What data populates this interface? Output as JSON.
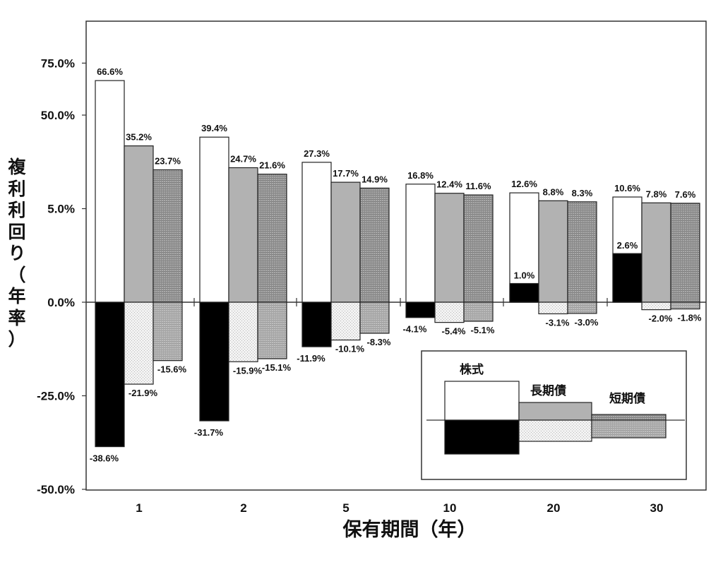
{
  "chart_data": {
    "type": "bar",
    "ylabel": "複利利回り（年率）",
    "xlabel": "保有期間（年）",
    "y_ticks": [
      "75.0%",
      "50.0%",
      "5.0%",
      "0.0%",
      "-25.0%",
      "-50.0%"
    ],
    "categories": [
      "1",
      "2",
      "5",
      "10",
      "20",
      "30"
    ],
    "legend_placement": "bottom-right",
    "series": [
      {
        "name": "株式",
        "kind": "max",
        "values": [
          66.6,
          39.4,
          27.3,
          16.8,
          12.6,
          10.6
        ],
        "labels": [
          "66.6%",
          "39.4%",
          "27.3%",
          "16.8%",
          "12.6%",
          "10.6%"
        ]
      },
      {
        "name": "株式",
        "kind": "min",
        "values": [
          -38.6,
          -31.7,
          -11.9,
          -4.1,
          1.0,
          2.6
        ],
        "labels": [
          "-38.6%",
          "-31.7%",
          "-11.9%",
          "-4.1%",
          "1.0%",
          "2.6%"
        ]
      },
      {
        "name": "長期債",
        "kind": "max",
        "values": [
          35.2,
          24.7,
          17.7,
          12.4,
          8.8,
          7.8
        ],
        "labels": [
          "35.2%",
          "24.7%",
          "17.7%",
          "12.4%",
          "8.8%",
          "7.8%"
        ]
      },
      {
        "name": "長期債",
        "kind": "min",
        "values": [
          -21.9,
          -15.9,
          -10.1,
          -5.4,
          -3.1,
          -2.0
        ],
        "labels": [
          "-21.9%",
          "-15.9%",
          "-10.1%",
          "-5.4%",
          "-3.1%",
          "-2.0%"
        ]
      },
      {
        "name": "短期債",
        "kind": "max",
        "values": [
          23.7,
          21.6,
          14.9,
          11.6,
          8.3,
          7.6
        ],
        "labels": [
          "23.7%",
          "21.6%",
          "14.9%",
          "11.6%",
          "8.3%",
          "7.6%"
        ]
      },
      {
        "name": "短期債",
        "kind": "min",
        "values": [
          -15.6,
          -15.1,
          -8.3,
          -5.1,
          -3.0,
          -1.8
        ],
        "labels": [
          "-15.6%",
          "-15.1%",
          "-8.3%",
          "-5.1%",
          "-3.0%",
          "-1.8%"
        ]
      }
    ],
    "legend": {
      "stock": "株式",
      "long_bond": "長期債",
      "short_bond": "短期債"
    }
  }
}
